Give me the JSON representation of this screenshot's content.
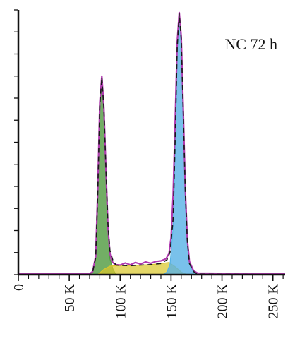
{
  "chart_data": {
    "type": "area",
    "title": "",
    "xlabel": "",
    "ylabel": "",
    "annotation": "NC 72 h",
    "xlim": [
      0,
      262000
    ],
    "ylim": [
      0,
      100
    ],
    "x_ticks": [
      {
        "value": 0,
        "label": "0"
      },
      {
        "value": 50000,
        "label": "50 K"
      },
      {
        "value": 100000,
        "label": "100 K"
      },
      {
        "value": 150000,
        "label": "150 K"
      },
      {
        "value": 200000,
        "label": "200 K"
      },
      {
        "value": 250000,
        "label": "250 K"
      }
    ],
    "y_tick_count": 12,
    "grid": false,
    "legend": "none",
    "series": [
      {
        "role": "G1 fit",
        "color": "#4f9a3e",
        "points": [
          [
            0,
            0
          ],
          [
            70000,
            0
          ],
          [
            73000,
            1
          ],
          [
            76000,
            6
          ],
          [
            78000,
            30
          ],
          [
            80000,
            63
          ],
          [
            82000,
            74
          ],
          [
            84000,
            62
          ],
          [
            86000,
            38
          ],
          [
            88000,
            16
          ],
          [
            90000,
            6
          ],
          [
            93000,
            2
          ],
          [
            96000,
            0
          ],
          [
            262000,
            0
          ]
        ]
      },
      {
        "role": "S-phase fit",
        "color": "#d9c72c",
        "points": [
          [
            0,
            0
          ],
          [
            78000,
            0
          ],
          [
            84000,
            2
          ],
          [
            90000,
            3.2
          ],
          [
            100000,
            3.5
          ],
          [
            110000,
            3.4
          ],
          [
            120000,
            3.6
          ],
          [
            130000,
            3.8
          ],
          [
            140000,
            4.2
          ],
          [
            148000,
            4.6
          ],
          [
            154000,
            3
          ],
          [
            160000,
            1
          ],
          [
            166000,
            0
          ],
          [
            262000,
            0
          ]
        ]
      },
      {
        "role": "G2 fit",
        "color": "#57b2e6",
        "points": [
          [
            0,
            0
          ],
          [
            142000,
            0
          ],
          [
            146000,
            1
          ],
          [
            149000,
            4
          ],
          [
            152000,
            18
          ],
          [
            154000,
            48
          ],
          [
            156000,
            85
          ],
          [
            158000,
            98
          ],
          [
            160000,
            88
          ],
          [
            162000,
            60
          ],
          [
            164000,
            30
          ],
          [
            166000,
            12
          ],
          [
            168000,
            4
          ],
          [
            172000,
            1
          ],
          [
            176000,
            0
          ],
          [
            262000,
            0
          ]
        ]
      },
      {
        "role": "measured histogram",
        "color": "#b03ab0",
        "points": [
          [
            0,
            0.3
          ],
          [
            70000,
            0.3
          ],
          [
            73000,
            1.2
          ],
          [
            76000,
            7
          ],
          [
            78000,
            32
          ],
          [
            80000,
            65
          ],
          [
            82000,
            75
          ],
          [
            84000,
            63
          ],
          [
            86000,
            40
          ],
          [
            88000,
            18
          ],
          [
            90000,
            8
          ],
          [
            92000,
            5
          ],
          [
            95000,
            3.8
          ],
          [
            100000,
            3.6
          ],
          [
            105000,
            4.4
          ],
          [
            110000,
            3.7
          ],
          [
            115000,
            4.6
          ],
          [
            120000,
            4
          ],
          [
            125000,
            4.8
          ],
          [
            130000,
            4.3
          ],
          [
            135000,
            5
          ],
          [
            140000,
            5.2
          ],
          [
            145000,
            6
          ],
          [
            148000,
            8
          ],
          [
            150000,
            14
          ],
          [
            152000,
            30
          ],
          [
            154000,
            58
          ],
          [
            156000,
            88
          ],
          [
            158000,
            99
          ],
          [
            160000,
            90
          ],
          [
            162000,
            62
          ],
          [
            164000,
            32
          ],
          [
            166000,
            13
          ],
          [
            168000,
            5
          ],
          [
            172000,
            1.5
          ],
          [
            176000,
            0.6
          ],
          [
            262000,
            0.3
          ]
        ]
      },
      {
        "role": "model sum",
        "color": "#1a1a1a",
        "points": [
          [
            0,
            0
          ],
          [
            70000,
            0
          ],
          [
            73000,
            1
          ],
          [
            76000,
            6.5
          ],
          [
            78000,
            31
          ],
          [
            80000,
            64
          ],
          [
            82000,
            74.5
          ],
          [
            84000,
            63
          ],
          [
            86000,
            40
          ],
          [
            88000,
            19
          ],
          [
            90000,
            9
          ],
          [
            93000,
            5.2
          ],
          [
            96000,
            3.6
          ],
          [
            100000,
            3.5
          ],
          [
            110000,
            3.4
          ],
          [
            120000,
            3.6
          ],
          [
            130000,
            3.8
          ],
          [
            140000,
            4.2
          ],
          [
            146000,
            5.6
          ],
          [
            149000,
            8.5
          ],
          [
            152000,
            21
          ],
          [
            154000,
            51
          ],
          [
            156000,
            86
          ],
          [
            158000,
            98.5
          ],
          [
            160000,
            89
          ],
          [
            162000,
            61
          ],
          [
            164000,
            31
          ],
          [
            166000,
            12.5
          ],
          [
            168000,
            4.2
          ],
          [
            172000,
            1.2
          ],
          [
            176000,
            0.2
          ],
          [
            262000,
            0
          ]
        ]
      }
    ]
  }
}
